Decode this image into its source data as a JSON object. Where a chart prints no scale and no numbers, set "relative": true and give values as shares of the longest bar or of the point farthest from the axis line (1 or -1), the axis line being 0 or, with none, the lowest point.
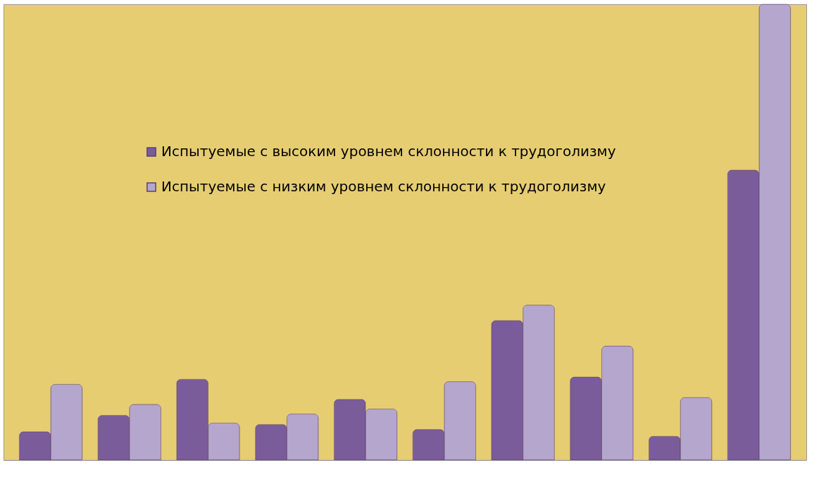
{
  "chart_data": {
    "type": "bar",
    "relative": true,
    "legend": "top left",
    "categories": [
      null,
      null,
      null,
      null,
      null,
      null,
      null,
      null,
      null,
      null
    ],
    "series": [
      {
        "name": "Испытуемые с высоким уровнем склонности к трудоголизму",
        "color": "#7b5c9a",
        "values": [
          0.062,
          0.098,
          0.177,
          0.078,
          0.133,
          0.067,
          0.306,
          0.182,
          0.052,
          0.636
        ]
      },
      {
        "name": "Испытуемые с низким уровнем склонности к трудоголизму",
        "color": "#b4a6cc",
        "values": [
          0.166,
          0.122,
          0.081,
          0.101,
          0.112,
          0.172,
          0.34,
          0.25,
          0.137,
          1
        ]
      }
    ]
  }
}
